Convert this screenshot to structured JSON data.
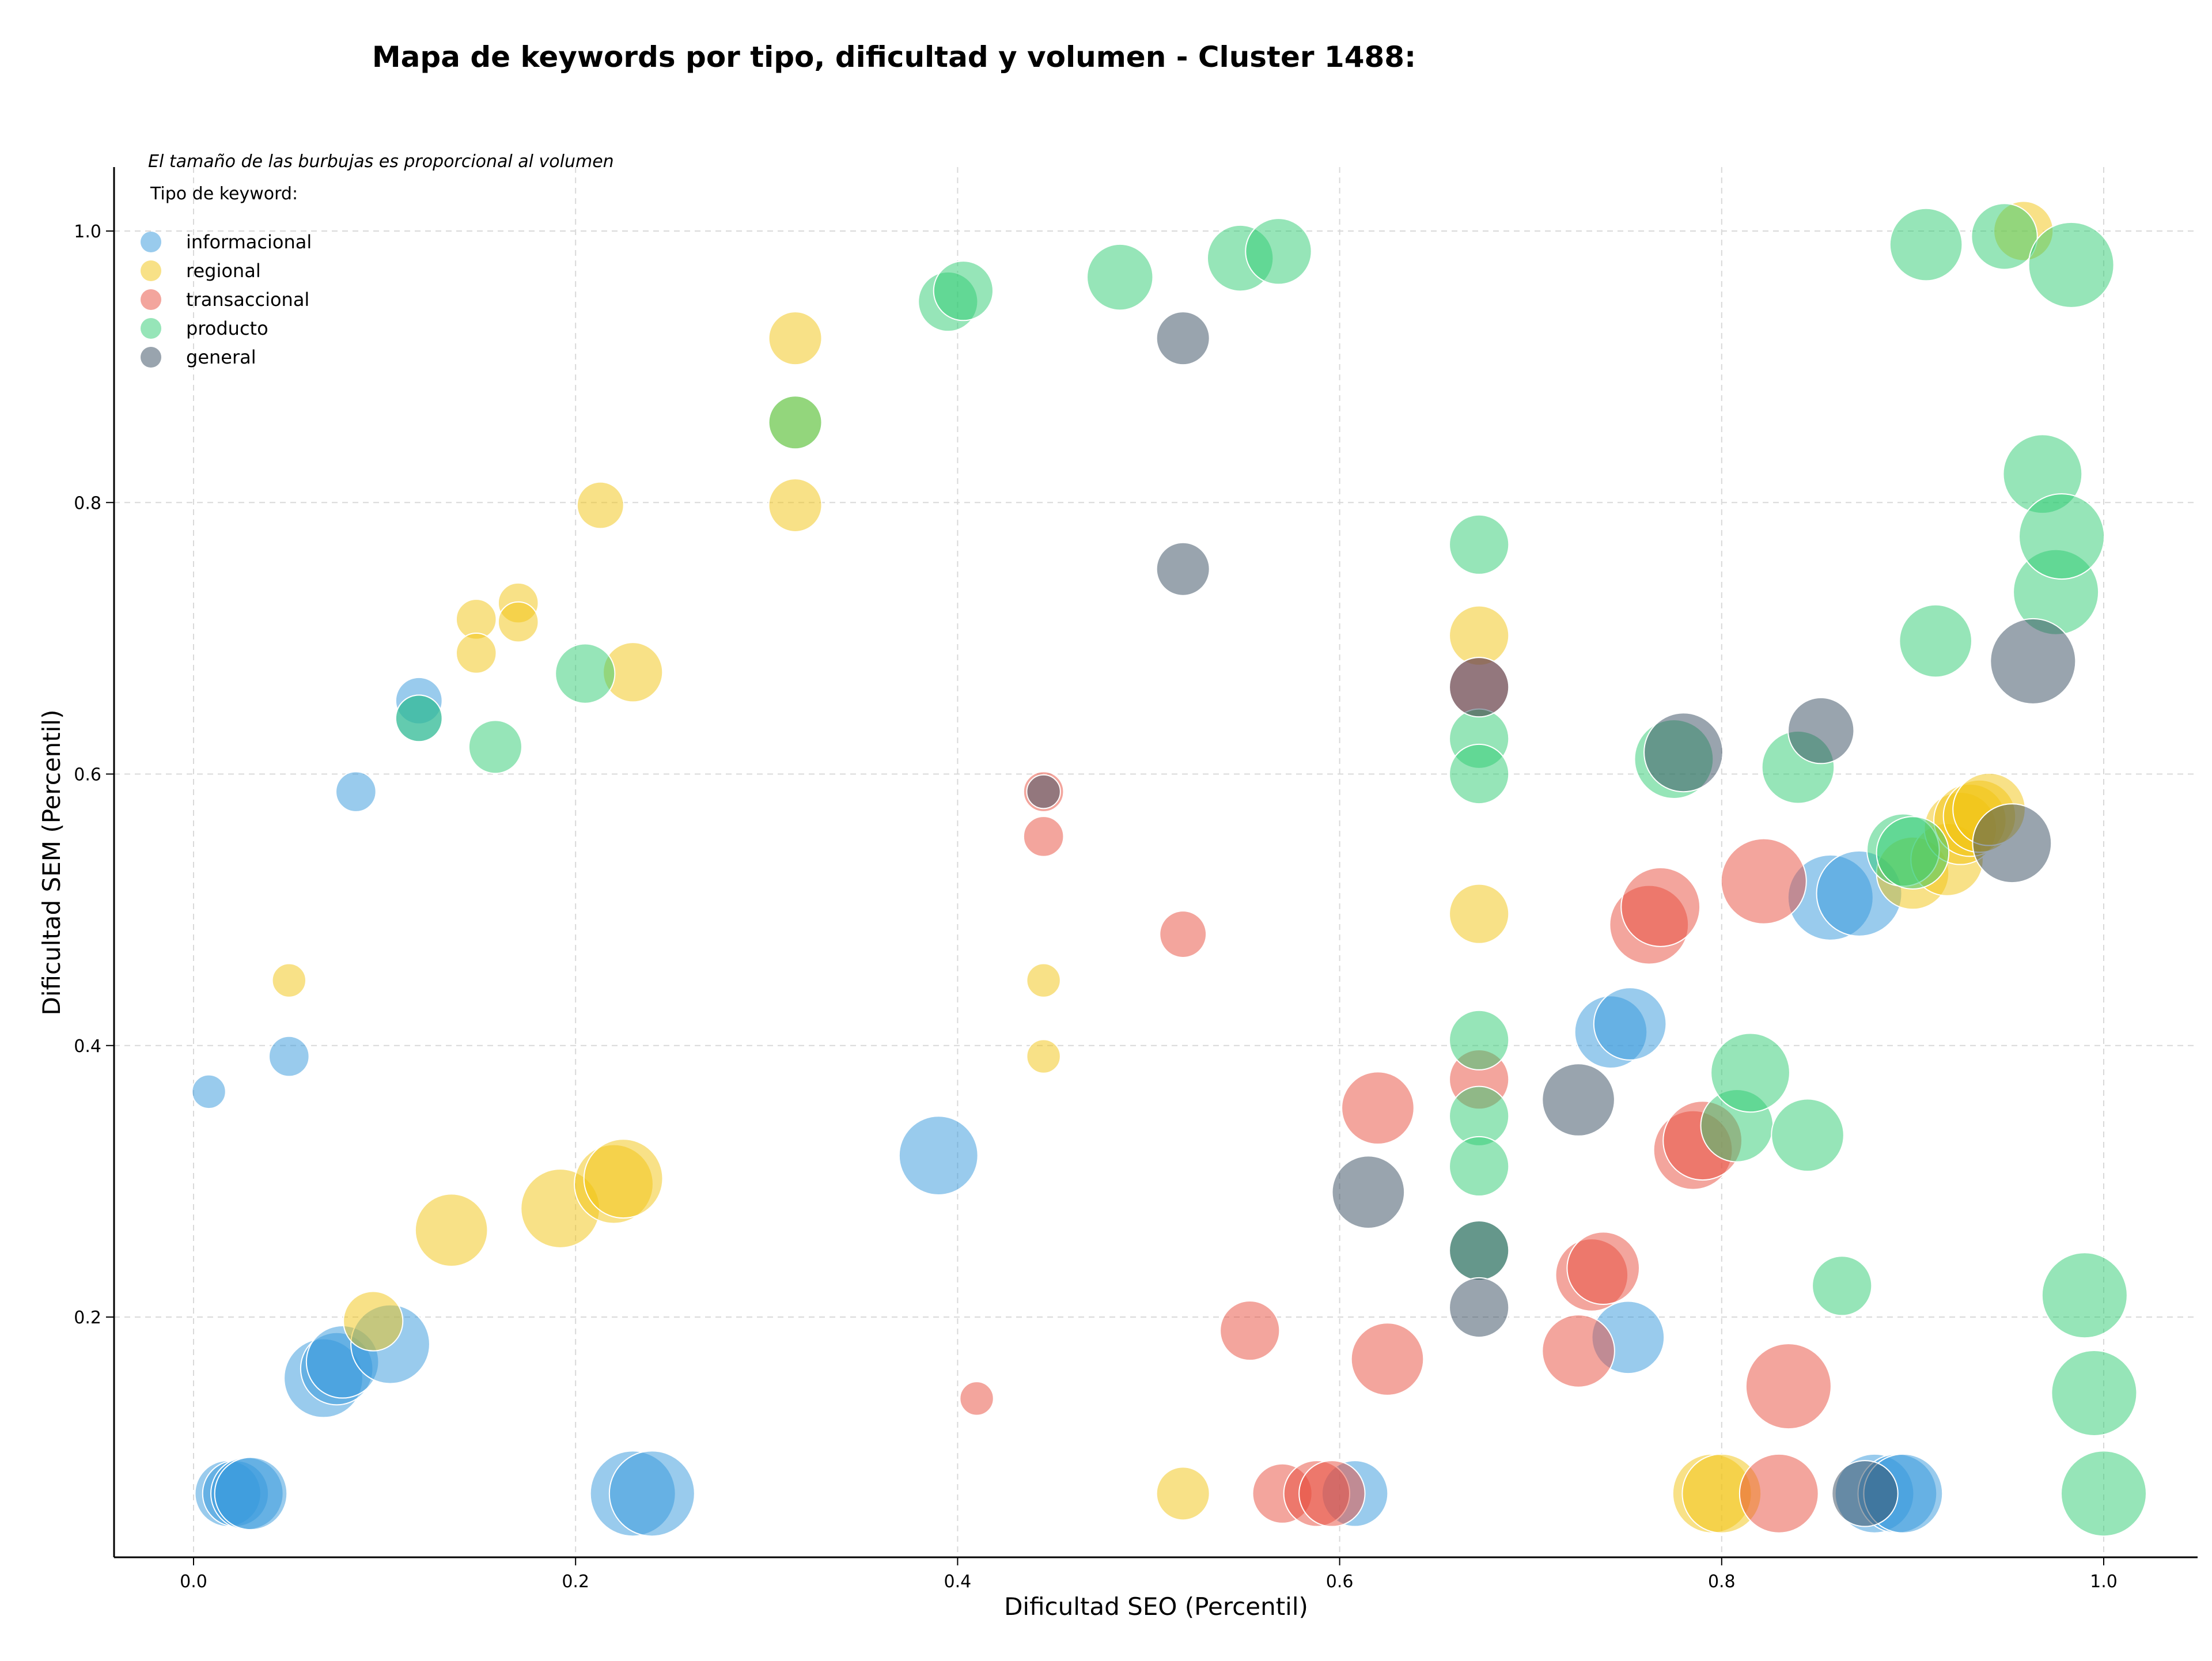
{
  "chart_data": {
    "type": "scatter",
    "title": "Mapa de keywords por tipo, dificultad y volumen - Cluster 1488:",
    "subtitle": "El tamaño de las burbujas es proporcional al volumen",
    "xlabel": "Dificultad SEO (Percentil)",
    "ylabel": "Dificultad SEM (Percentil)",
    "xlim": [
      -0.04,
      1.05
    ],
    "ylim": [
      0.03,
      1.05
    ],
    "xticks": [
      "0.0",
      "0.2",
      "0.4",
      "0.6",
      "0.8",
      "1.0"
    ],
    "yticks": [
      "0.2",
      "0.4",
      "0.6",
      "0.8",
      "1.0"
    ],
    "grid": true,
    "legend": {
      "title": "Tipo de keyword:",
      "placement": "top-left"
    },
    "series": [
      {
        "name": "informacional",
        "color": "#3498db",
        "points": [
          [
            0.008,
            0.366,
            2
          ],
          [
            0.05,
            0.392,
            3
          ],
          [
            0.085,
            0.587,
            3
          ],
          [
            0.118,
            0.654,
            4
          ],
          [
            0.118,
            0.641,
            4
          ],
          [
            0.018,
            0.07,
            7
          ],
          [
            0.022,
            0.07,
            7
          ],
          [
            0.028,
            0.07,
            8
          ],
          [
            0.03,
            0.07,
            8
          ],
          [
            0.068,
            0.155,
            9
          ],
          [
            0.075,
            0.162,
            8
          ],
          [
            0.078,
            0.167,
            8
          ],
          [
            0.103,
            0.18,
            9
          ],
          [
            0.23,
            0.07,
            10
          ],
          [
            0.24,
            0.07,
            10
          ],
          [
            0.39,
            0.319,
            9
          ],
          [
            0.608,
            0.07,
            7
          ],
          [
            0.742,
            0.41,
            8
          ],
          [
            0.752,
            0.416,
            8
          ],
          [
            0.751,
            0.185,
            8
          ],
          [
            0.857,
            0.509,
            10
          ],
          [
            0.872,
            0.512,
            10
          ],
          [
            0.88,
            0.07,
            9
          ],
          [
            0.892,
            0.07,
            9
          ],
          [
            0.895,
            0.07,
            9
          ]
        ]
      },
      {
        "name": "regional",
        "color": "#f1c40f",
        "points": [
          [
            0.05,
            0.448,
            2
          ],
          [
            0.094,
            0.197,
            6
          ],
          [
            0.135,
            0.264,
            8
          ],
          [
            0.148,
            0.714,
            3
          ],
          [
            0.148,
            0.689,
            3
          ],
          [
            0.17,
            0.726,
            3
          ],
          [
            0.17,
            0.712,
            3
          ],
          [
            0.192,
            0.28,
            9
          ],
          [
            0.213,
            0.798,
            4
          ],
          [
            0.22,
            0.298,
            9
          ],
          [
            0.225,
            0.302,
            9
          ],
          [
            0.23,
            0.675,
            6
          ],
          [
            0.315,
            0.921,
            5
          ],
          [
            0.315,
            0.859,
            5
          ],
          [
            0.315,
            0.798,
            5
          ],
          [
            0.445,
            0.448,
            2
          ],
          [
            0.445,
            0.392,
            2
          ],
          [
            0.518,
            0.07,
            5
          ],
          [
            0.673,
            0.702,
            6
          ],
          [
            0.673,
            0.497,
            6
          ],
          [
            0.795,
            0.07,
            9
          ],
          [
            0.8,
            0.07,
            9
          ],
          [
            0.9,
            0.527,
            8
          ],
          [
            0.918,
            0.537,
            8
          ],
          [
            0.925,
            0.56,
            8
          ],
          [
            0.93,
            0.566,
            8
          ],
          [
            0.935,
            0.569,
            8
          ],
          [
            0.94,
            0.574,
            8
          ],
          [
            0.958,
            1.0,
            6
          ]
        ]
      },
      {
        "name": "transaccional",
        "color": "#e74c3c",
        "points": [
          [
            0.41,
            0.14,
            2
          ],
          [
            0.445,
            0.554,
            3
          ],
          [
            0.445,
            0.587,
            3
          ],
          [
            0.518,
            0.482,
            4
          ],
          [
            0.553,
            0.19,
            6
          ],
          [
            0.57,
            0.07,
            6
          ],
          [
            0.588,
            0.07,
            7
          ],
          [
            0.596,
            0.07,
            7
          ],
          [
            0.62,
            0.354,
            8
          ],
          [
            0.625,
            0.169,
            8
          ],
          [
            0.673,
            0.375,
            6
          ],
          [
            0.673,
            0.664,
            6
          ],
          [
            0.725,
            0.175,
            8
          ],
          [
            0.732,
            0.231,
            8
          ],
          [
            0.738,
            0.236,
            8
          ],
          [
            0.762,
            0.489,
            9
          ],
          [
            0.768,
            0.502,
            9
          ],
          [
            0.785,
            0.323,
            9
          ],
          [
            0.79,
            0.33,
            9
          ],
          [
            0.822,
            0.521,
            10
          ],
          [
            0.83,
            0.07,
            9
          ],
          [
            0.835,
            0.149,
            10
          ]
        ]
      },
      {
        "name": "producto",
        "color": "#2ecc71",
        "points": [
          [
            0.118,
            0.641,
            4
          ],
          [
            0.158,
            0.62,
            5
          ],
          [
            0.205,
            0.674,
            6
          ],
          [
            0.315,
            0.859,
            5
          ],
          [
            0.395,
            0.948,
            6
          ],
          [
            0.403,
            0.956,
            6
          ],
          [
            0.485,
            0.966,
            7
          ],
          [
            0.548,
            0.98,
            7
          ],
          [
            0.568,
            0.985,
            7
          ],
          [
            0.673,
            0.769,
            6
          ],
          [
            0.673,
            0.626,
            6
          ],
          [
            0.673,
            0.6,
            6
          ],
          [
            0.673,
            0.404,
            6
          ],
          [
            0.673,
            0.348,
            6
          ],
          [
            0.673,
            0.311,
            6
          ],
          [
            0.673,
            0.249,
            6
          ],
          [
            0.775,
            0.611,
            9
          ],
          [
            0.808,
            0.341,
            8
          ],
          [
            0.815,
            0.38,
            9
          ],
          [
            0.84,
            0.605,
            8
          ],
          [
            0.845,
            0.334,
            8
          ],
          [
            0.863,
            0.223,
            6
          ],
          [
            0.895,
            0.544,
            8
          ],
          [
            0.9,
            0.542,
            8
          ],
          [
            0.907,
            0.99,
            8
          ],
          [
            0.912,
            0.698,
            8
          ],
          [
            0.948,
            0.996,
            7
          ],
          [
            0.968,
            0.821,
            9
          ],
          [
            0.975,
            0.734,
            10
          ],
          [
            0.978,
            0.775,
            10
          ],
          [
            0.983,
            0.975,
            10
          ],
          [
            0.99,
            0.216,
            10
          ],
          [
            0.995,
            0.144,
            10
          ],
          [
            1.0,
            0.07,
            10
          ]
        ]
      },
      {
        "name": "general",
        "color": "#34495e",
        "points": [
          [
            0.445,
            0.587,
            2
          ],
          [
            0.518,
            0.921,
            5
          ],
          [
            0.518,
            0.751,
            5
          ],
          [
            0.615,
            0.292,
            8
          ],
          [
            0.673,
            0.664,
            6
          ],
          [
            0.673,
            0.249,
            6
          ],
          [
            0.673,
            0.207,
            6
          ],
          [
            0.725,
            0.36,
            8
          ],
          [
            0.78,
            0.616,
            9
          ],
          [
            0.852,
            0.632,
            7
          ],
          [
            0.875,
            0.07,
            7
          ],
          [
            0.952,
            0.549,
            9
          ],
          [
            0.963,
            0.683,
            10
          ]
        ]
      }
    ]
  }
}
